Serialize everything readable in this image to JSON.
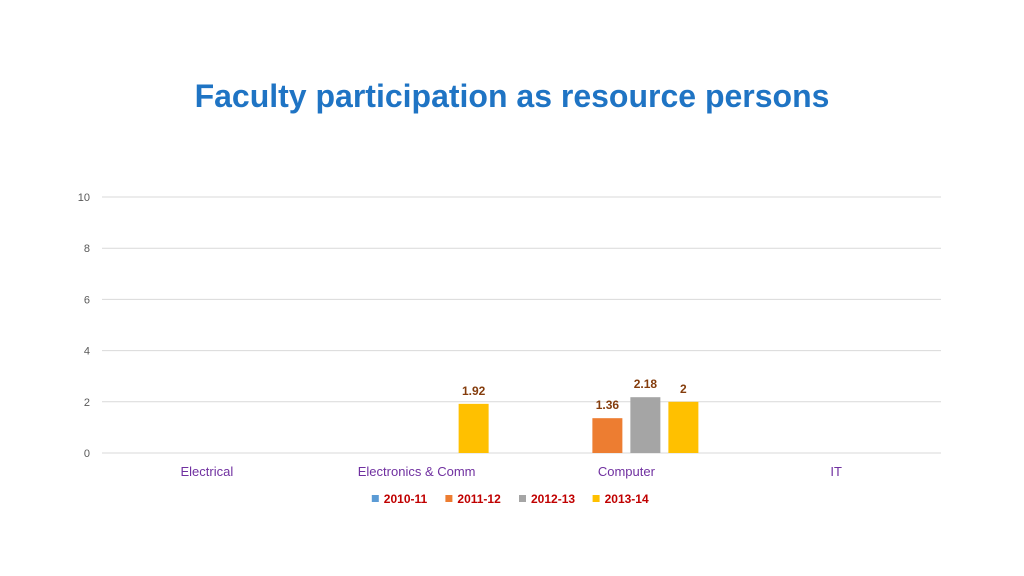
{
  "slide": {
    "title": "Faculty participation as resource persons"
  },
  "colors": {
    "title": "#1f74c4",
    "category_label": "#7030a0",
    "data_label": "#843c0c",
    "legend_text": "#c00000",
    "gridline": "#d9d9d9",
    "tick_label": "#595959"
  },
  "chart_data": {
    "type": "bar",
    "title": "",
    "xlabel": "",
    "ylabel": "",
    "ylim": [
      0,
      10
    ],
    "yticks": [
      0,
      2,
      4,
      6,
      8,
      10
    ],
    "grid": true,
    "legend_position": "bottom",
    "categories": [
      "Electrical",
      "Electronics & Comm",
      "Computer",
      "IT"
    ],
    "series": [
      {
        "name": "2010-11",
        "color": "#5b9bd5",
        "values": [
          0,
          0,
          0,
          0
        ]
      },
      {
        "name": "2011-12",
        "color": "#ed7d31",
        "values": [
          0,
          0,
          1.36,
          0
        ]
      },
      {
        "name": "2012-13",
        "color": "#a5a5a5",
        "values": [
          0,
          0,
          2.18,
          0
        ]
      },
      {
        "name": "2013-14",
        "color": "#ffc000",
        "values": [
          0,
          1.92,
          2,
          0
        ]
      }
    ],
    "data_labels": [
      {
        "series": 3,
        "category": 1,
        "text": "1.92"
      },
      {
        "series": 1,
        "category": 2,
        "text": "1.36"
      },
      {
        "series": 2,
        "category": 2,
        "text": "2.18"
      },
      {
        "series": 3,
        "category": 2,
        "text": "2"
      }
    ]
  }
}
